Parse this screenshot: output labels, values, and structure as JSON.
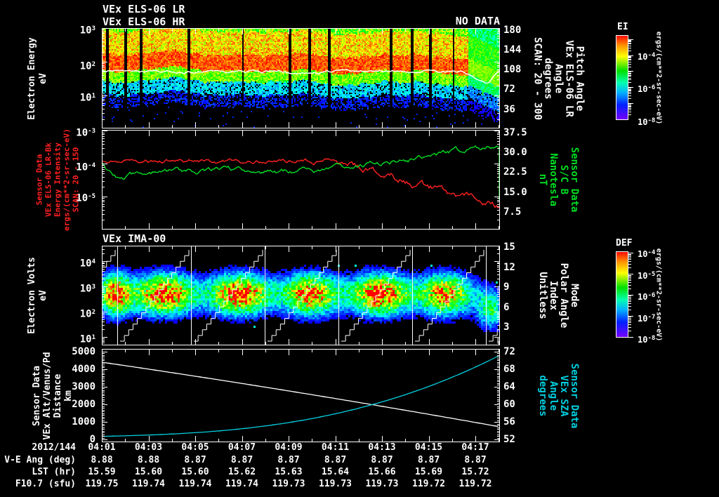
{
  "titles": {
    "line1": "VEx ELS-06 LR",
    "line2": "VEx ELS-06 HR",
    "no_data": "NO DATA",
    "panel3": "VEx IMA-00"
  },
  "panel1": {
    "left_axis": {
      "label_lines": [
        "Electron Energy",
        "eV"
      ],
      "ticks": [
        "10^3",
        "10^2",
        "10^1"
      ],
      "color": "#ffffff"
    },
    "right_axis": {
      "label_lines": [
        "Pitch Angle",
        "VEx ELS-06 LR",
        "Angle",
        "degrees",
        "SCAN: 20 - 300"
      ],
      "ticks": [
        "180",
        "144",
        "108",
        "72",
        "36"
      ],
      "color": "#ffffff"
    }
  },
  "panel2": {
    "left_axis": {
      "label_lines": [
        "Sensor Data",
        "VEx ELS-06 LR-Bk",
        "Energy Intensity",
        "ergs/(cm**2-sr-sec-eV)",
        "SCAN: 20 - 150"
      ],
      "ticks": [
        "10^-3",
        "10^-4",
        "10^-5"
      ],
      "color": "#ff2020"
    },
    "right_axis": {
      "label_lines": [
        "Sensor Data",
        "S/C B",
        "Nanotesla",
        "nT"
      ],
      "ticks": [
        "37.5",
        "30.0",
        "22.5",
        "15.0",
        "7.5"
      ],
      "color": "#00dd22"
    }
  },
  "panel3": {
    "left_axis": {
      "label_lines": [
        "Electron Volts",
        "eV"
      ],
      "ticks": [
        "10^4",
        "10^3",
        "10^2",
        "10^1"
      ],
      "color": "#ffffff"
    },
    "right_axis": {
      "label_lines": [
        "Mode",
        "Polar Angle",
        "Index",
        "Unitless"
      ],
      "ticks": [
        "15",
        "12",
        "9",
        "6",
        "3"
      ],
      "color": "#ffffff"
    }
  },
  "panel4": {
    "left_axis": {
      "label_lines": [
        "Sensor Data",
        "VEx Alt/Venus/Pd",
        "Distance",
        "km"
      ],
      "ticks": [
        "5000",
        "4000",
        "3000",
        "2000",
        "1000",
        "0"
      ],
      "color": "#ffffff"
    },
    "right_axis": {
      "label_lines": [
        "Sensor Data",
        "VEx SZA",
        "Angle",
        "degrees"
      ],
      "ticks": [
        "72",
        "68",
        "64",
        "60",
        "56",
        "52"
      ],
      "color": "#00d0e0"
    }
  },
  "colorbar1": {
    "label": "EI",
    "ticks": [
      "10^-4",
      "10^-6",
      "10^-8"
    ],
    "unit": "ergs/(cm**2-sr-sec-eV)"
  },
  "colorbar2": {
    "label": "DEF",
    "ticks": [
      "10^-4",
      "10^-5",
      "10^-6",
      "10^-7",
      "10^-8"
    ],
    "unit": "ergs/(cm**2-sr-sec-eV)"
  },
  "xaxis": {
    "date": "2012/144",
    "times": [
      "04:01",
      "04:03",
      "04:05",
      "04:07",
      "04:09",
      "04:11",
      "04:13",
      "04:15",
      "04:17"
    ]
  },
  "table": {
    "rows": [
      {
        "label": "V-E Ang (deg)",
        "values": [
          "8.88",
          "8.88",
          "8.87",
          "8.87",
          "8.87",
          "8.87",
          "8.87",
          "8.87",
          "8.87"
        ]
      },
      {
        "label": "LST (hr)",
        "values": [
          "15.59",
          "15.60",
          "15.60",
          "15.62",
          "15.63",
          "15.64",
          "15.66",
          "15.69",
          "15.72"
        ]
      },
      {
        "label": "F10.7 (sfu)",
        "values": [
          "119.75",
          "119.74",
          "119.74",
          "119.74",
          "119.73",
          "119.73",
          "119.73",
          "119.72",
          "119.72"
        ]
      }
    ]
  },
  "chart_data": [
    {
      "type": "heatmap",
      "panel": "VEx ELS-06 LR electron energy spectrogram",
      "title": "VEx ELS-06 LR / VEx ELS-06 HR (HR: NO DATA)",
      "xlabel": "UT on 2012/144 from 04:01 to ~04:18",
      "ylabel": "Electron Energy (eV)",
      "yscale": "log",
      "yrange": [
        10,
        1000
      ],
      "right_axis": {
        "label": "Pitch Angle, VEx ELS-06 LR, Angle, degrees, SCAN: 20 - 300",
        "ticks": [
          36,
          72,
          108,
          144,
          180
        ]
      },
      "colorscale": {
        "label": "EI",
        "units": "ergs/(cm**2-sr-sec-eV)",
        "range": [
          1e-08,
          0.0001
        ]
      },
      "content": "Continuous enhanced electron flux band: red-orange core (~1e-4) near 40-150 eV, yellow-green halo above/below, blue speckle at 10-30 eV, black below ~10 eV; several narrow vertical data-gap stripes; band weakens and sinks to lower energies near 04:16-04:18; white pitch-angle trace wiggles along the band"
    },
    {
      "type": "line",
      "panel": "ELS energy intensity and spacecraft magnetic field",
      "x": [
        "04:01",
        "04:03",
        "04:05",
        "04:07",
        "04:09",
        "04:11",
        "04:13",
        "04:15",
        "04:17"
      ],
      "series": [
        {
          "name": "VEx ELS-06 LR-Bk Energy Intensity SCAN: 20 - 150",
          "color": "#ff2020",
          "units": "ergs/(cm**2-sr-sec-eV)",
          "yscale": "log",
          "yrange": [
            1e-06,
            0.001
          ],
          "values": [
            0.00014,
            0.000125,
            0.00013,
            0.00012,
            0.00012,
            0.000115,
            9e-05,
            3e-05,
            8e-06
          ]
        },
        {
          "name": "Sensor Data S/C B",
          "color": "#00dd22",
          "units": "nT",
          "yrange": [
            0,
            40
          ],
          "values": [
            26,
            22,
            23,
            22.5,
            23,
            25,
            27.5,
            31,
            33
          ]
        }
      ]
    },
    {
      "type": "heatmap",
      "panel": "VEx IMA-00 ion spectrogram",
      "title": "VEx IMA-00",
      "ylabel": "Electron Volts (eV)",
      "yscale": "log",
      "yrange": [
        10,
        30000
      ],
      "right_axis": {
        "label": "Mode / Polar Angle Index (Unitless)",
        "ticks": [
          3,
          6,
          9,
          12,
          15
        ]
      },
      "colorscale": {
        "label": "DEF",
        "units": "ergs/(cm**2-sr-sec-eV)",
        "range": [
          1e-08,
          0.0001
        ]
      },
      "content": "Six bright periodic ion flux blobs (red cores ~1e-4 between ~100-1000 eV) spaced ~2 min apart plus one faint green-blue blob near 04:17; repeating white sawtooth polar-angle scan staircases and vertical white scan-boundary lines"
    },
    {
      "type": "line",
      "panel": "ephemeris: altitude and solar zenith angle",
      "x": [
        "04:01",
        "04:03",
        "04:05",
        "04:07",
        "04:09",
        "04:11",
        "04:13",
        "04:15",
        "04:17"
      ],
      "series": [
        {
          "name": "Sensor Data VEx Alt/Venus/Pd Distance",
          "color": "#ffffff",
          "units": "km",
          "yrange": [
            0,
            5000
          ],
          "values": [
            4400,
            3950,
            3500,
            3050,
            2620,
            2200,
            1780,
            1350,
            920
          ]
        },
        {
          "name": "Sensor Data VEx SZA Angle",
          "color": "#00d0e0",
          "units": "degrees",
          "yrange": [
            52,
            72
          ],
          "values": [
            52.8,
            53.1,
            53.6,
            54.4,
            55.5,
            57.1,
            59.3,
            62.3,
            66.3
          ]
        }
      ]
    }
  ]
}
